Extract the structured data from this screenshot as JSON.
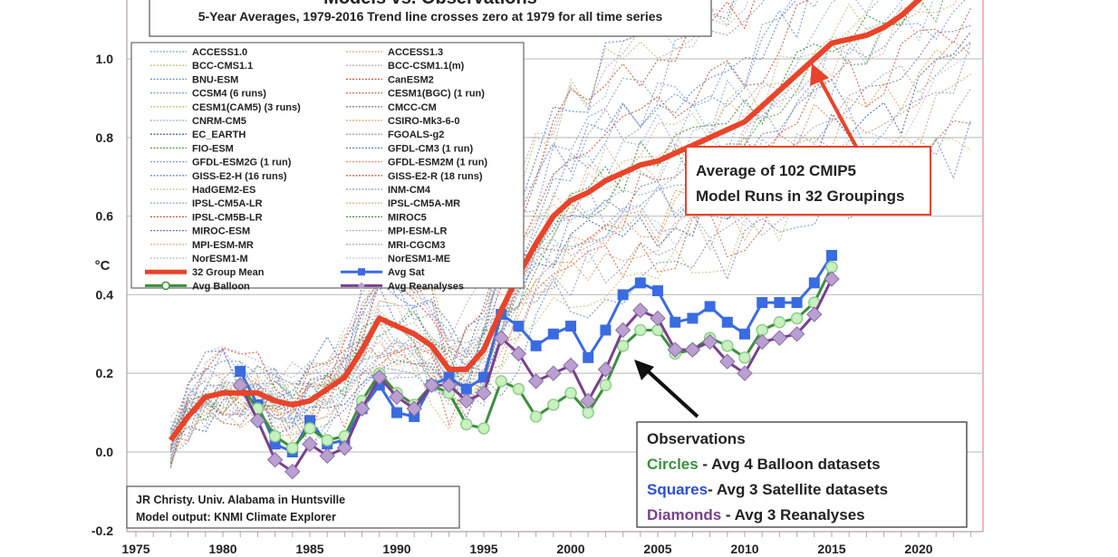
{
  "chart_data": {
    "type": "line",
    "title": "Models vs. Observations",
    "subtitle": "5-Year Averages, 1979-2016 Trend line crosses zero at 1979 for all time series",
    "ylabel": "°C",
    "xlim": [
      1974.5,
      2023.7
    ],
    "ylim": [
      -0.2,
      1.15
    ],
    "x_ticks": [
      "1975",
      "1980",
      "1985",
      "1990",
      "1995",
      "2000",
      "2005",
      "2010",
      "2015",
      "2020"
    ],
    "y_ticks": [
      "-0.2",
      "0.0",
      "0.2",
      "0.4",
      "0.6",
      "0.8",
      "1.0"
    ],
    "grid": true,
    "legend_placement": "top-left",
    "model_legend": [
      {
        "name": "ACCESS1.0",
        "color": "#7fa3d6"
      },
      {
        "name": "ACCESS1.3",
        "color": "#e0a07a"
      },
      {
        "name": "BCC-CMS1.1",
        "color": "#b7c27a"
      },
      {
        "name": "BCC-CSM1.1(m)",
        "color": "#c9a0b8"
      },
      {
        "name": "BNU-ESM",
        "color": "#6f94c9"
      },
      {
        "name": "CanESM2",
        "color": "#c9533a"
      },
      {
        "name": "CCSM4 (6 runs)",
        "color": "#7f9cc9"
      },
      {
        "name": "CESM1(BGC) (1 run)",
        "color": "#c96a4a"
      },
      {
        "name": "CESM1(CAM5) (3 runs)",
        "color": "#c8c27a"
      },
      {
        "name": "CMCC-CM",
        "color": "#6d7fb3"
      },
      {
        "name": "CNRM-CM5",
        "color": "#8fb0dd"
      },
      {
        "name": "CSIRO-Mk3-6-0",
        "color": "#e8a060"
      },
      {
        "name": "EC_EARTH",
        "color": "#4466aa"
      },
      {
        "name": "FGOALS-g2",
        "color": "#9aa0b0"
      },
      {
        "name": "FIO-ESM",
        "color": "#5a9a4a"
      },
      {
        "name": "GFDL-CM3 (1 run)",
        "color": "#6a80c0"
      },
      {
        "name": "GFDL-ESM2G (1 run)",
        "color": "#7f9cd0"
      },
      {
        "name": "GFDL-ESM2M (1 run)",
        "color": "#e09060"
      },
      {
        "name": "GISS-E2-H (16 runs)",
        "color": "#6f8fc9"
      },
      {
        "name": "GISS-E2-R (18 runs)",
        "color": "#c8604a"
      },
      {
        "name": "HadGEM2-ES",
        "color": "#c0c090"
      },
      {
        "name": "INM-CM4",
        "color": "#8a9ac0"
      },
      {
        "name": "IPSL-CM5A-LR",
        "color": "#8fb0dd"
      },
      {
        "name": "IPSL-CM5A-MR",
        "color": "#e0b080"
      },
      {
        "name": "IPSL-CM5B-LR",
        "color": "#d05030"
      },
      {
        "name": "MIROC5",
        "color": "#3a8a3a"
      },
      {
        "name": "MIROC-ESM",
        "color": "#5a7ac0"
      },
      {
        "name": "MPI-ESM-LR",
        "color": "#9ab0d0"
      },
      {
        "name": "MPI-ESM-MR",
        "color": "#e8b090"
      },
      {
        "name": "MRI-CGCM3",
        "color": "#a0a8b8"
      },
      {
        "name": "NorESM1-M",
        "color": "#b0b8c8"
      },
      {
        "name": "NorESM1-ME",
        "color": "#c0c8d0"
      }
    ],
    "series": [
      {
        "name": "32 Group Mean",
        "color": "#e8442a",
        "marker": "none",
        "x": [
          1977,
          1978,
          1979,
          1980,
          1981,
          1982,
          1983,
          1984,
          1985,
          1986,
          1987,
          1988,
          1989,
          1990,
          1991,
          1992,
          1993,
          1994,
          1995,
          1996,
          1997,
          1998,
          1999,
          2000,
          2001,
          2002,
          2003,
          2004,
          2005,
          2006,
          2007,
          2008,
          2009,
          2010,
          2011,
          2012,
          2013,
          2014,
          2015,
          2016,
          2017,
          2018,
          2019,
          2020,
          2021
        ],
        "y": [
          0.03,
          0.09,
          0.14,
          0.15,
          0.15,
          0.15,
          0.13,
          0.12,
          0.13,
          0.16,
          0.19,
          0.26,
          0.34,
          0.32,
          0.3,
          0.27,
          0.21,
          0.21,
          0.26,
          0.36,
          0.45,
          0.53,
          0.6,
          0.64,
          0.66,
          0.69,
          0.71,
          0.73,
          0.74,
          0.76,
          0.78,
          0.8,
          0.82,
          0.84,
          0.88,
          0.92,
          0.96,
          1.0,
          1.04,
          1.05,
          1.06,
          1.08,
          1.11,
          1.15,
          1.19
        ]
      },
      {
        "name": "Avg Sat",
        "color": "#3a6be0",
        "marker": "square",
        "x": [
          1981,
          1982,
          1983,
          1984,
          1985,
          1986,
          1987,
          1988,
          1989,
          1990,
          1991,
          1992,
          1993,
          1994,
          1995,
          1996,
          1997,
          1998,
          1999,
          2000,
          2001,
          2002,
          2003,
          2004,
          2005,
          2006,
          2007,
          2008,
          2009,
          2010,
          2011,
          2012,
          2013,
          2014,
          2015
        ],
        "y": [
          0.205,
          0.12,
          0.02,
          0.0,
          0.08,
          0.02,
          0.03,
          0.11,
          0.17,
          0.1,
          0.09,
          0.17,
          0.19,
          0.16,
          0.19,
          0.35,
          0.32,
          0.27,
          0.3,
          0.32,
          0.24,
          0.31,
          0.4,
          0.43,
          0.41,
          0.33,
          0.34,
          0.37,
          0.33,
          0.3,
          0.38,
          0.38,
          0.38,
          0.43,
          0.5
        ]
      },
      {
        "name": "Avg Balloon",
        "color": "#3c8f3c",
        "marker": "circle",
        "x": [
          1981,
          1982,
          1983,
          1984,
          1985,
          1986,
          1987,
          1988,
          1989,
          1990,
          1991,
          1992,
          1993,
          1994,
          1995,
          1996,
          1997,
          1998,
          1999,
          2000,
          2001,
          2002,
          2003,
          2004,
          2005,
          2006,
          2007,
          2008,
          2009,
          2010,
          2011,
          2012,
          2013,
          2014,
          2015
        ],
        "y": [
          0.17,
          0.11,
          0.04,
          0.01,
          0.06,
          0.03,
          0.04,
          0.13,
          0.2,
          0.15,
          0.12,
          0.17,
          0.15,
          0.07,
          0.06,
          0.18,
          0.16,
          0.09,
          0.12,
          0.15,
          0.1,
          0.17,
          0.27,
          0.31,
          0.31,
          0.25,
          0.26,
          0.29,
          0.27,
          0.24,
          0.31,
          0.33,
          0.34,
          0.38,
          0.47
        ]
      },
      {
        "name": "Avg Reanalyses",
        "color": "#7a3f8f",
        "marker": "diamond",
        "x": [
          1981,
          1982,
          1983,
          1984,
          1985,
          1986,
          1987,
          1988,
          1989,
          1990,
          1991,
          1992,
          1993,
          1994,
          1995,
          1996,
          1997,
          1998,
          1999,
          2000,
          2001,
          2002,
          2003,
          2004,
          2005,
          2006,
          2007,
          2008,
          2009,
          2010,
          2011,
          2012,
          2013,
          2014,
          2015
        ],
        "y": [
          0.17,
          0.08,
          -0.02,
          -0.05,
          0.02,
          -0.01,
          0.01,
          0.11,
          0.19,
          0.14,
          0.11,
          0.17,
          0.17,
          0.13,
          0.15,
          0.29,
          0.25,
          0.18,
          0.2,
          0.22,
          0.13,
          0.21,
          0.31,
          0.36,
          0.34,
          0.26,
          0.26,
          0.28,
          0.23,
          0.2,
          0.28,
          0.29,
          0.3,
          0.35,
          0.44
        ]
      }
    ],
    "annotations": {
      "model_box": [
        "Average of 102 CMIP5",
        "Model Runs in 32 Groupings"
      ],
      "obs_title": "Observations",
      "obs_lines": [
        {
          "key": "Circles",
          "text": " - Avg 4 Balloon datasets",
          "color": "#3c8f3c"
        },
        {
          "key": "Squares",
          "text": "- Avg 3 Satellite datasets",
          "color": "#2a4fd6"
        },
        {
          "key": "Diamonds",
          "text": " - Avg 3 Reanalyses",
          "color": "#7a3f8f"
        }
      ],
      "credit": [
        "JR Christy. Univ. Alabama in Huntsville",
        "Model output: KNMI Climate Explorer"
      ]
    }
  }
}
